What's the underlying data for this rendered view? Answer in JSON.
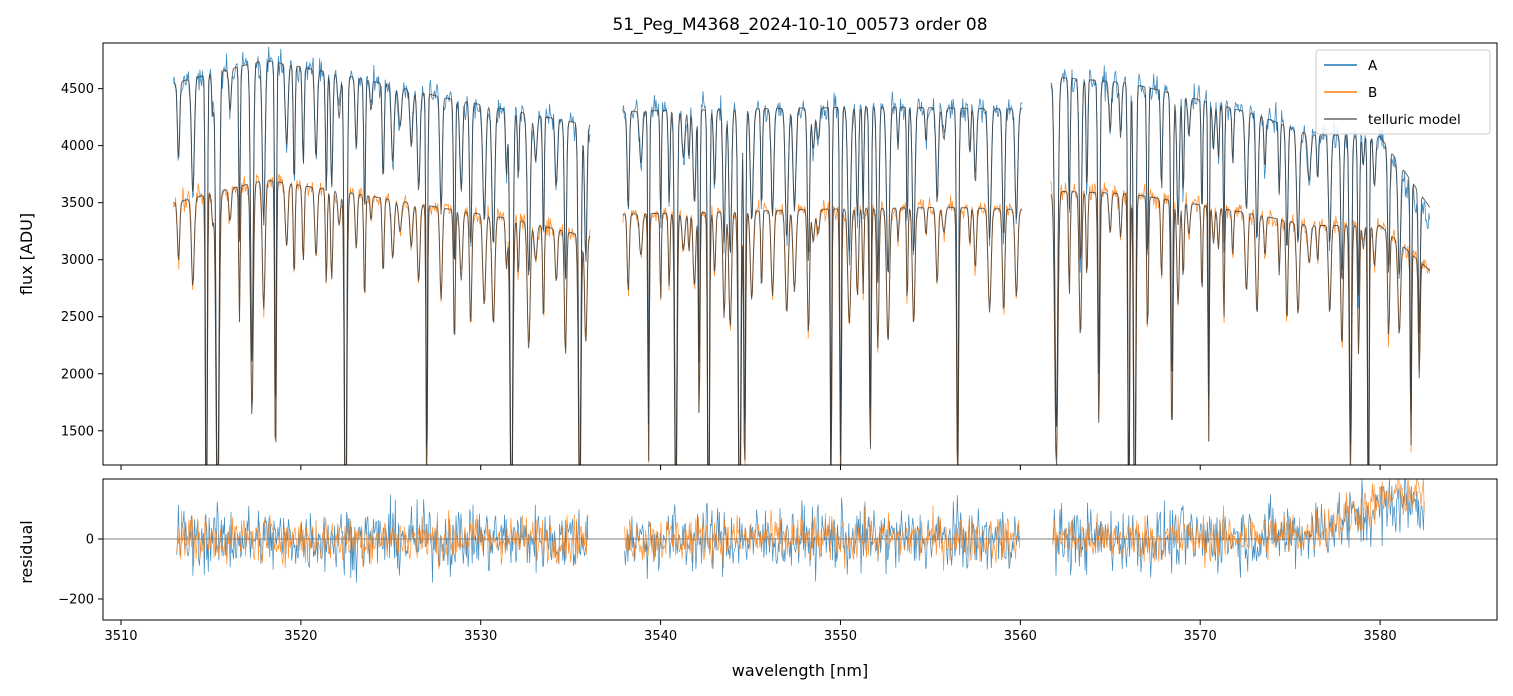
{
  "title": "51_Peg_M4368_2024-10-10_00573  order 08",
  "colors": {
    "A": "#1f77b4",
    "B": "#ff7f0e",
    "model": "#333333"
  },
  "chart_data": [
    {
      "type": "line",
      "panel": "top",
      "title": "51_Peg_M4368_2024-10-10_00573  order 08",
      "xlabel": "",
      "ylabel": "flux [ADU]",
      "xlim": [
        3509,
        3586.5
      ],
      "ylim": [
        1200,
        4900
      ],
      "x_ticks": [
        3510,
        3520,
        3530,
        3540,
        3550,
        3560,
        3570,
        3580
      ],
      "y_ticks": [
        1500,
        2000,
        2500,
        3000,
        3500,
        4000,
        4500
      ],
      "y_tick_labels": [
        "1500",
        "2000",
        "2500",
        "3000",
        "3500",
        "4000",
        "4500"
      ],
      "legend": {
        "position": "top-right",
        "entries": [
          "A",
          "B",
          "telluric model"
        ]
      },
      "data_segments": [
        [
          3512.9,
          3536.1
        ],
        [
          3537.9,
          3560.1
        ],
        [
          3561.7,
          3582.8
        ]
      ],
      "series": [
        {
          "name": "A",
          "x": [
            3513,
            3518,
            3523,
            3528,
            3532,
            3536,
            3538,
            3544,
            3548,
            3552,
            3556,
            3560,
            3562,
            3566,
            3570,
            3573,
            3576,
            3580,
            3582.8
          ],
          "values": [
            4550,
            4750,
            4600,
            4420,
            4300,
            4180,
            4300,
            4320,
            4330,
            4340,
            4330,
            4320,
            4600,
            4550,
            4400,
            4280,
            4100,
            4080,
            3300
          ]
        },
        {
          "name": "B",
          "x": [
            3513,
            3518,
            3523,
            3528,
            3532,
            3536,
            3538,
            3544,
            3548,
            3552,
            3556,
            3560,
            3562,
            3566,
            3570,
            3573,
            3576,
            3580,
            3582.8
          ],
          "values": [
            3500,
            3700,
            3580,
            3450,
            3350,
            3200,
            3400,
            3420,
            3440,
            3450,
            3460,
            3440,
            3600,
            3580,
            3480,
            3400,
            3300,
            3300,
            2900
          ]
        },
        {
          "name": "telluric model",
          "x": [
            3513,
            3518,
            3523,
            3528,
            3532,
            3536,
            3538,
            3544,
            3548,
            3552,
            3556,
            3560,
            3562,
            3566,
            3570,
            3573,
            3576,
            3580,
            3582.8
          ],
          "values": [
            4550,
            4750,
            4600,
            4420,
            4300,
            4180,
            4300,
            4320,
            4330,
            4340,
            4330,
            4320,
            4600,
            4550,
            4400,
            4280,
            4100,
            4080,
            3450
          ]
        }
      ]
    },
    {
      "type": "line",
      "panel": "bottom",
      "xlabel": "wavelength [nm]",
      "ylabel": "residual",
      "xlim": [
        3509,
        3586.5
      ],
      "ylim": [
        -270,
        200
      ],
      "x_ticks": [
        3510,
        3520,
        3530,
        3540,
        3550,
        3560,
        3570,
        3580
      ],
      "x_tick_labels": [
        "3510",
        "3520",
        "3530",
        "3540",
        "3550",
        "3560",
        "3570",
        "3580"
      ],
      "y_ticks": [
        -200,
        0
      ],
      "y_tick_labels": [
        "−200",
        "0"
      ],
      "zero_line": true,
      "series": [
        {
          "name": "A",
          "x": [
            3514,
            3520,
            3530,
            3540,
            3550,
            3560,
            3565,
            3570,
            3576,
            3581
          ],
          "values": [
            0,
            0,
            0,
            0,
            0,
            0,
            0,
            0,
            20,
            120
          ]
        },
        {
          "name": "B",
          "x": [
            3514,
            3520,
            3530,
            3540,
            3550,
            3560,
            3565,
            3570,
            3576,
            3581
          ],
          "values": [
            0,
            0,
            0,
            0,
            0,
            0,
            0,
            0,
            20,
            150
          ]
        }
      ]
    }
  ]
}
